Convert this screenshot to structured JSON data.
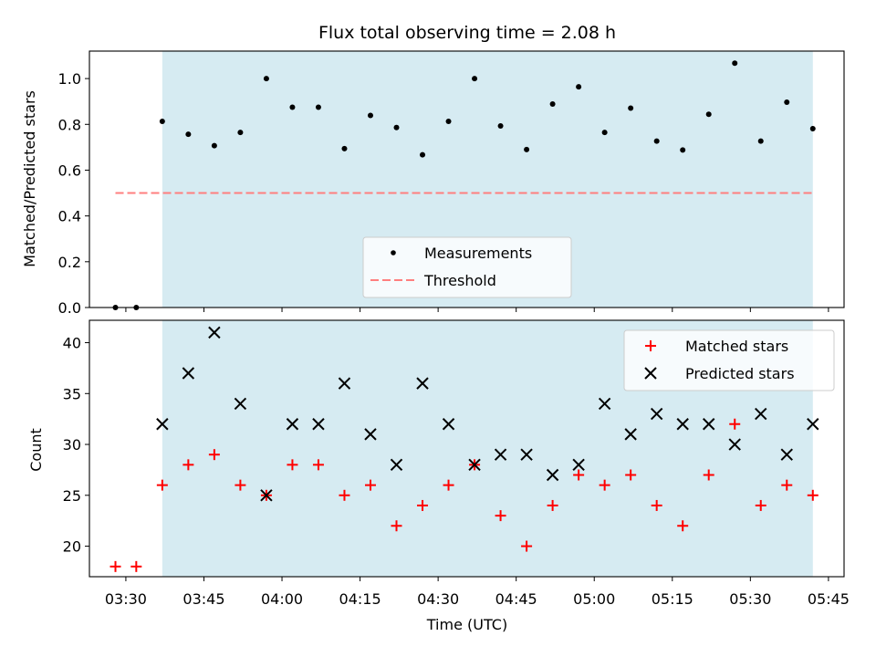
{
  "chart_data": [
    {
      "type": "scatter",
      "title": "Flux total observing time = 2.08 h",
      "xlabel": "",
      "ylabel": "Matched/Predicted stars",
      "xlim": [
        "03:23",
        "05:48"
      ],
      "ylim": [
        0,
        1.12
      ],
      "yticks": [
        0.0,
        0.2,
        0.4,
        0.6,
        0.8,
        1.0
      ],
      "ytick_labels": [
        "0.0",
        "0.2",
        "0.4",
        "0.6",
        "0.8",
        "1.0"
      ],
      "xticks": [
        "03:30",
        "03:45",
        "04:00",
        "04:15",
        "04:30",
        "04:45",
        "05:00",
        "05:15",
        "05:30",
        "05:45"
      ],
      "shaded_region": {
        "x_start": "03:37",
        "x_end": "05:42",
        "color": "#add8e6"
      },
      "legend": {
        "placement": "lower center",
        "entries": [
          "Measurements",
          "Threshold"
        ]
      },
      "series": [
        {
          "name": "Measurements",
          "marker": "dot",
          "color": "#000000",
          "x": [
            "03:28",
            "03:32",
            "03:37",
            "03:42",
            "03:47",
            "03:52",
            "03:57",
            "04:02",
            "04:07",
            "04:12",
            "04:17",
            "04:22",
            "04:27",
            "04:32",
            "04:37",
            "04:42",
            "04:47",
            "04:52",
            "04:57",
            "05:02",
            "05:07",
            "05:12",
            "05:17",
            "05:22",
            "05:27",
            "05:32",
            "05:37",
            "05:42"
          ],
          "y": [
            0.0,
            0.0,
            0.813,
            0.757,
            0.707,
            0.765,
            1.0,
            0.875,
            0.875,
            0.694,
            0.839,
            0.786,
            0.667,
            0.813,
            1.0,
            0.793,
            0.69,
            0.889,
            0.964,
            0.765,
            0.871,
            0.727,
            0.688,
            0.844,
            1.067,
            0.727,
            0.897,
            0.781
          ]
        },
        {
          "name": "Threshold",
          "line": "dashed",
          "color": "#ff7f7f",
          "x": [
            "03:28",
            "05:42"
          ],
          "y": [
            0.5,
            0.5
          ]
        }
      ]
    },
    {
      "type": "scatter",
      "title": "",
      "xlabel": "Time (UTC)",
      "ylabel": "Count",
      "xlim": [
        "03:23",
        "05:48"
      ],
      "ylim": [
        17,
        42.2
      ],
      "yticks": [
        20,
        25,
        30,
        35,
        40
      ],
      "ytick_labels": [
        "20",
        "25",
        "30",
        "35",
        "40"
      ],
      "xticks": [
        "03:30",
        "03:45",
        "04:00",
        "04:15",
        "04:30",
        "04:45",
        "05:00",
        "05:15",
        "05:30",
        "05:45"
      ],
      "shaded_region": {
        "x_start": "03:37",
        "x_end": "05:42",
        "color": "#add8e6"
      },
      "legend": {
        "placement": "upper right",
        "entries": [
          "Matched stars",
          "Predicted stars"
        ]
      },
      "series": [
        {
          "name": "Matched stars",
          "marker": "plus",
          "color": "#ff0000",
          "x": [
            "03:28",
            "03:32",
            "03:37",
            "03:42",
            "03:47",
            "03:52",
            "03:57",
            "04:02",
            "04:07",
            "04:12",
            "04:17",
            "04:22",
            "04:27",
            "04:32",
            "04:37",
            "04:42",
            "04:47",
            "04:52",
            "04:57",
            "05:02",
            "05:07",
            "05:12",
            "05:17",
            "05:22",
            "05:27",
            "05:32",
            "05:37",
            "05:42"
          ],
          "y": [
            18,
            18,
            26,
            28,
            29,
            26,
            25,
            28,
            28,
            25,
            26,
            22,
            24,
            26,
            28,
            23,
            20,
            24,
            27,
            26,
            27,
            24,
            22,
            27,
            32,
            24,
            26,
            25
          ]
        },
        {
          "name": "Predicted stars",
          "marker": "x",
          "color": "#000000",
          "x": [
            "03:37",
            "03:42",
            "03:47",
            "03:52",
            "03:57",
            "04:02",
            "04:07",
            "04:12",
            "04:17",
            "04:22",
            "04:27",
            "04:32",
            "04:37",
            "04:42",
            "04:47",
            "04:52",
            "04:57",
            "05:02",
            "05:07",
            "05:12",
            "05:17",
            "05:22",
            "05:27",
            "05:32",
            "05:37",
            "05:42"
          ],
          "y": [
            32,
            37,
            41,
            34,
            25,
            32,
            32,
            36,
            31,
            28,
            36,
            32,
            28,
            29,
            29,
            27,
            28,
            34,
            31,
            33,
            32,
            32,
            30,
            33,
            29,
            32
          ]
        }
      ]
    }
  ]
}
